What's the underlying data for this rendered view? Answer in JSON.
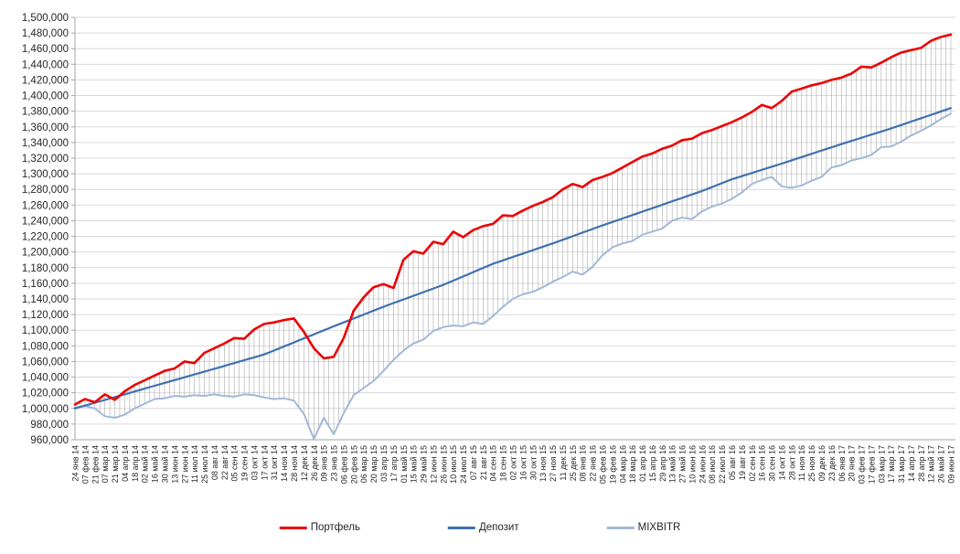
{
  "legend": {
    "items": [
      {
        "key": "portfolio",
        "label": "Портфель",
        "color": "#ee0000"
      },
      {
        "key": "deposit",
        "label": "Депозит",
        "color": "#4070b0"
      },
      {
        "key": "mixbitr",
        "label": "MIXBITR",
        "color": "#a2b8d8"
      }
    ]
  },
  "colors": {
    "gridline": "#d9d9d9",
    "axis_line": "#a6a6a6",
    "high_low_line": "#ababab",
    "tick_text": "#262626"
  },
  "chart_data": {
    "type": "line",
    "title": "",
    "xlabel": "",
    "ylabel": "",
    "ylim": [
      960000,
      1500000
    ],
    "y_step": 20000,
    "grid": true,
    "legend_position": "bottom",
    "high_low_lines": true,
    "y_tick_labels": [
      "960,000",
      "980,000",
      "1,000,000",
      "1,020,000",
      "1,040,000",
      "1,060,000",
      "1,080,000",
      "1,100,000",
      "1,120,000",
      "1,140,000",
      "1,160,000",
      "1,180,000",
      "1,200,000",
      "1,220,000",
      "1,240,000",
      "1,260,000",
      "1,280,000",
      "1,300,000",
      "1,320,000",
      "1,340,000",
      "1,360,000",
      "1,380,000",
      "1,400,000",
      "1,420,000",
      "1,440,000",
      "1,460,000",
      "1,480,000",
      "1,500,000"
    ],
    "categories": [
      "24 янв 14",
      "07 фев 14",
      "21 фев 14",
      "07 мар 14",
      "21 мар 14",
      "04 апр 14",
      "18 апр 14",
      "02 май 14",
      "16 май 14",
      "30 май 14",
      "13 июн 14",
      "27 июн 14",
      "11 июл 14",
      "25 июл 14",
      "08 авг 14",
      "22 авг 14",
      "05 сен 14",
      "19 сен 14",
      "03 окт 14",
      "17 окт 14",
      "31 окт 14",
      "14 ноя 14",
      "28 ноя 14",
      "12 дек 14",
      "26 дек 14",
      "09 янв 15",
      "23 янв 15",
      "06 фев 15",
      "20 фев 15",
      "06 мар 15",
      "20 мар 15",
      "03 апр 15",
      "17 апр 15",
      "01 май 15",
      "15 май 15",
      "29 май 15",
      "12 июн 15",
      "26 июн 15",
      "10 июл 15",
      "24 июл 15",
      "07 авг 15",
      "21 авг 15",
      "04 сен 15",
      "18 сен 15",
      "02 окт 15",
      "16 окт 15",
      "30 окт 15",
      "13 ноя 15",
      "27 ноя 15",
      "11 дек 15",
      "25 дек 15",
      "08 янв 16",
      "22 янв 16",
      "05 фев 16",
      "19 фев 16",
      "04 мар 16",
      "18 мар 16",
      "01 апр 16",
      "15 апр 16",
      "29 апр 16",
      "13 май 16",
      "27 май 16",
      "10 июн 16",
      "24 июн 16",
      "08 июл 16",
      "22 июл 16",
      "05 авг 16",
      "19 авг 16",
      "02 сен 16",
      "16 сен 16",
      "30 сен 16",
      "14 окт 16",
      "28 окт 16",
      "11 ноя 16",
      "25 ноя 16",
      "09 дек 16",
      "23 дек 16",
      "06 янв 17",
      "20 янв 17",
      "03 фев 17",
      "17 фев 17",
      "03 мар 17",
      "17 мар 17",
      "31 мар 17",
      "14 апр 17",
      "28 апр 17",
      "12 май 17",
      "26 май 17",
      "09 июн 17"
    ],
    "series": [
      {
        "name": "Портфель",
        "color": "#ee0000",
        "width": 2.6,
        "values": [
          1005000,
          1012000,
          1008000,
          1018000,
          1011000,
          1022000,
          1030000,
          1036000,
          1042000,
          1048000,
          1051000,
          1060000,
          1058000,
          1071000,
          1077000,
          1083000,
          1090000,
          1089000,
          1101000,
          1108000,
          1110000,
          1113000,
          1115000,
          1098000,
          1077000,
          1064000,
          1066000,
          1090000,
          1125000,
          1142000,
          1155000,
          1159000,
          1154000,
          1190000,
          1201000,
          1198000,
          1213000,
          1210000,
          1226000,
          1219000,
          1228000,
          1233000,
          1236000,
          1247000,
          1246000,
          1253000,
          1259000,
          1264000,
          1270000,
          1280000,
          1287000,
          1283000,
          1292000,
          1296000,
          1301000,
          1308000,
          1315000,
          1322000,
          1326000,
          1332000,
          1336000,
          1343000,
          1345000,
          1352000,
          1356000,
          1361000,
          1366000,
          1372000,
          1379000,
          1388000,
          1384000,
          1393000,
          1405000,
          1409000,
          1413000,
          1416000,
          1420000,
          1423000,
          1428000,
          1437000,
          1436000,
          1442000,
          1449000,
          1455000,
          1458000,
          1461000,
          1470000,
          1475000,
          1478000
        ]
      },
      {
        "name": "Депозит",
        "color": "#4070b0",
        "width": 2.2,
        "values": [
          1000000,
          1003600,
          1007200,
          1010900,
          1014500,
          1018100,
          1021700,
          1025300,
          1029000,
          1032600,
          1036200,
          1039800,
          1043400,
          1047000,
          1050700,
          1054300,
          1058000,
          1061700,
          1065300,
          1069000,
          1074100,
          1079300,
          1084400,
          1089600,
          1094700,
          1099900,
          1105000,
          1110000,
          1115000,
          1120000,
          1125000,
          1130000,
          1134700,
          1139300,
          1144000,
          1148700,
          1153300,
          1158000,
          1163400,
          1168800,
          1174200,
          1179600,
          1185000,
          1189300,
          1193700,
          1198000,
          1202300,
          1206700,
          1211000,
          1215600,
          1220200,
          1224800,
          1229400,
          1234000,
          1238400,
          1242800,
          1247200,
          1251600,
          1256000,
          1260400,
          1264800,
          1269200,
          1273600,
          1278000,
          1283000,
          1288000,
          1293000,
          1297000,
          1301000,
          1305000,
          1309000,
          1313000,
          1317200,
          1321300,
          1325500,
          1329700,
          1333800,
          1338000,
          1342000,
          1346000,
          1350000,
          1354000,
          1358000,
          1362300,
          1366700,
          1371000,
          1375300,
          1379700,
          1384000
        ]
      },
      {
        "name": "MIXBITR",
        "color": "#a2b8d8",
        "width": 2,
        "values": [
          1001000,
          1003000,
          1000000,
          990000,
          988000,
          992000,
          1000000,
          1006000,
          1012000,
          1013000,
          1016000,
          1015000,
          1017000,
          1016000,
          1018000,
          1016000,
          1015000,
          1018000,
          1017000,
          1014000,
          1012000,
          1013000,
          1010000,
          993000,
          961000,
          988000,
          967000,
          994000,
          1017000,
          1026000,
          1035000,
          1048000,
          1062000,
          1074000,
          1083000,
          1088000,
          1099000,
          1104000,
          1106000,
          1105000,
          1110000,
          1108000,
          1118000,
          1130000,
          1140000,
          1146000,
          1149000,
          1155000,
          1162000,
          1168000,
          1175000,
          1171000,
          1181000,
          1196000,
          1206000,
          1211000,
          1214000,
          1222000,
          1226000,
          1230000,
          1240000,
          1244000,
          1242000,
          1252000,
          1258000,
          1262000,
          1268000,
          1276000,
          1287000,
          1292000,
          1296000,
          1284000,
          1282000,
          1285000,
          1291000,
          1296000,
          1308000,
          1311000,
          1317000,
          1320000,
          1324000,
          1334000,
          1335000,
          1341000,
          1349000,
          1355000,
          1362000,
          1370000,
          1377000
        ]
      }
    ]
  }
}
